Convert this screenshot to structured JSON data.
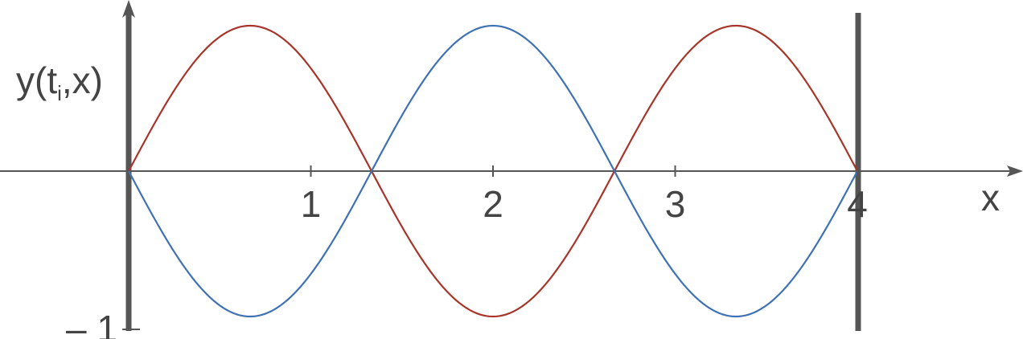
{
  "chart_data": {
    "type": "line",
    "xlabel": "x",
    "ylabel": {
      "main": "y(t",
      "sub": "i",
      "tail": ",x)"
    },
    "x_ticks": [
      {
        "value": 1,
        "label": "1"
      },
      {
        "value": 2,
        "label": "2"
      },
      {
        "value": 3,
        "label": "3"
      },
      {
        "value": 4,
        "label": "4"
      }
    ],
    "y_ticks": [
      {
        "value": -1,
        "label": "– 1"
      }
    ],
    "xlim": [
      -0.7,
      4.9
    ],
    "ylim": [
      -1.05,
      1.1
    ],
    "boundaries": [
      0,
      4
    ],
    "grid": false,
    "series": [
      {
        "function": "sin",
        "amplitude": 1,
        "wavenumber": 2.356,
        "x_range": [
          0,
          4
        ],
        "color": "#a8352a"
      },
      {
        "function": "sin",
        "amplitude": -1,
        "wavenumber": 2.356,
        "x_range": [
          0,
          4
        ],
        "color": "#3f72b4"
      }
    ],
    "axis_color": "#555555",
    "boundary_color": "#555555"
  }
}
